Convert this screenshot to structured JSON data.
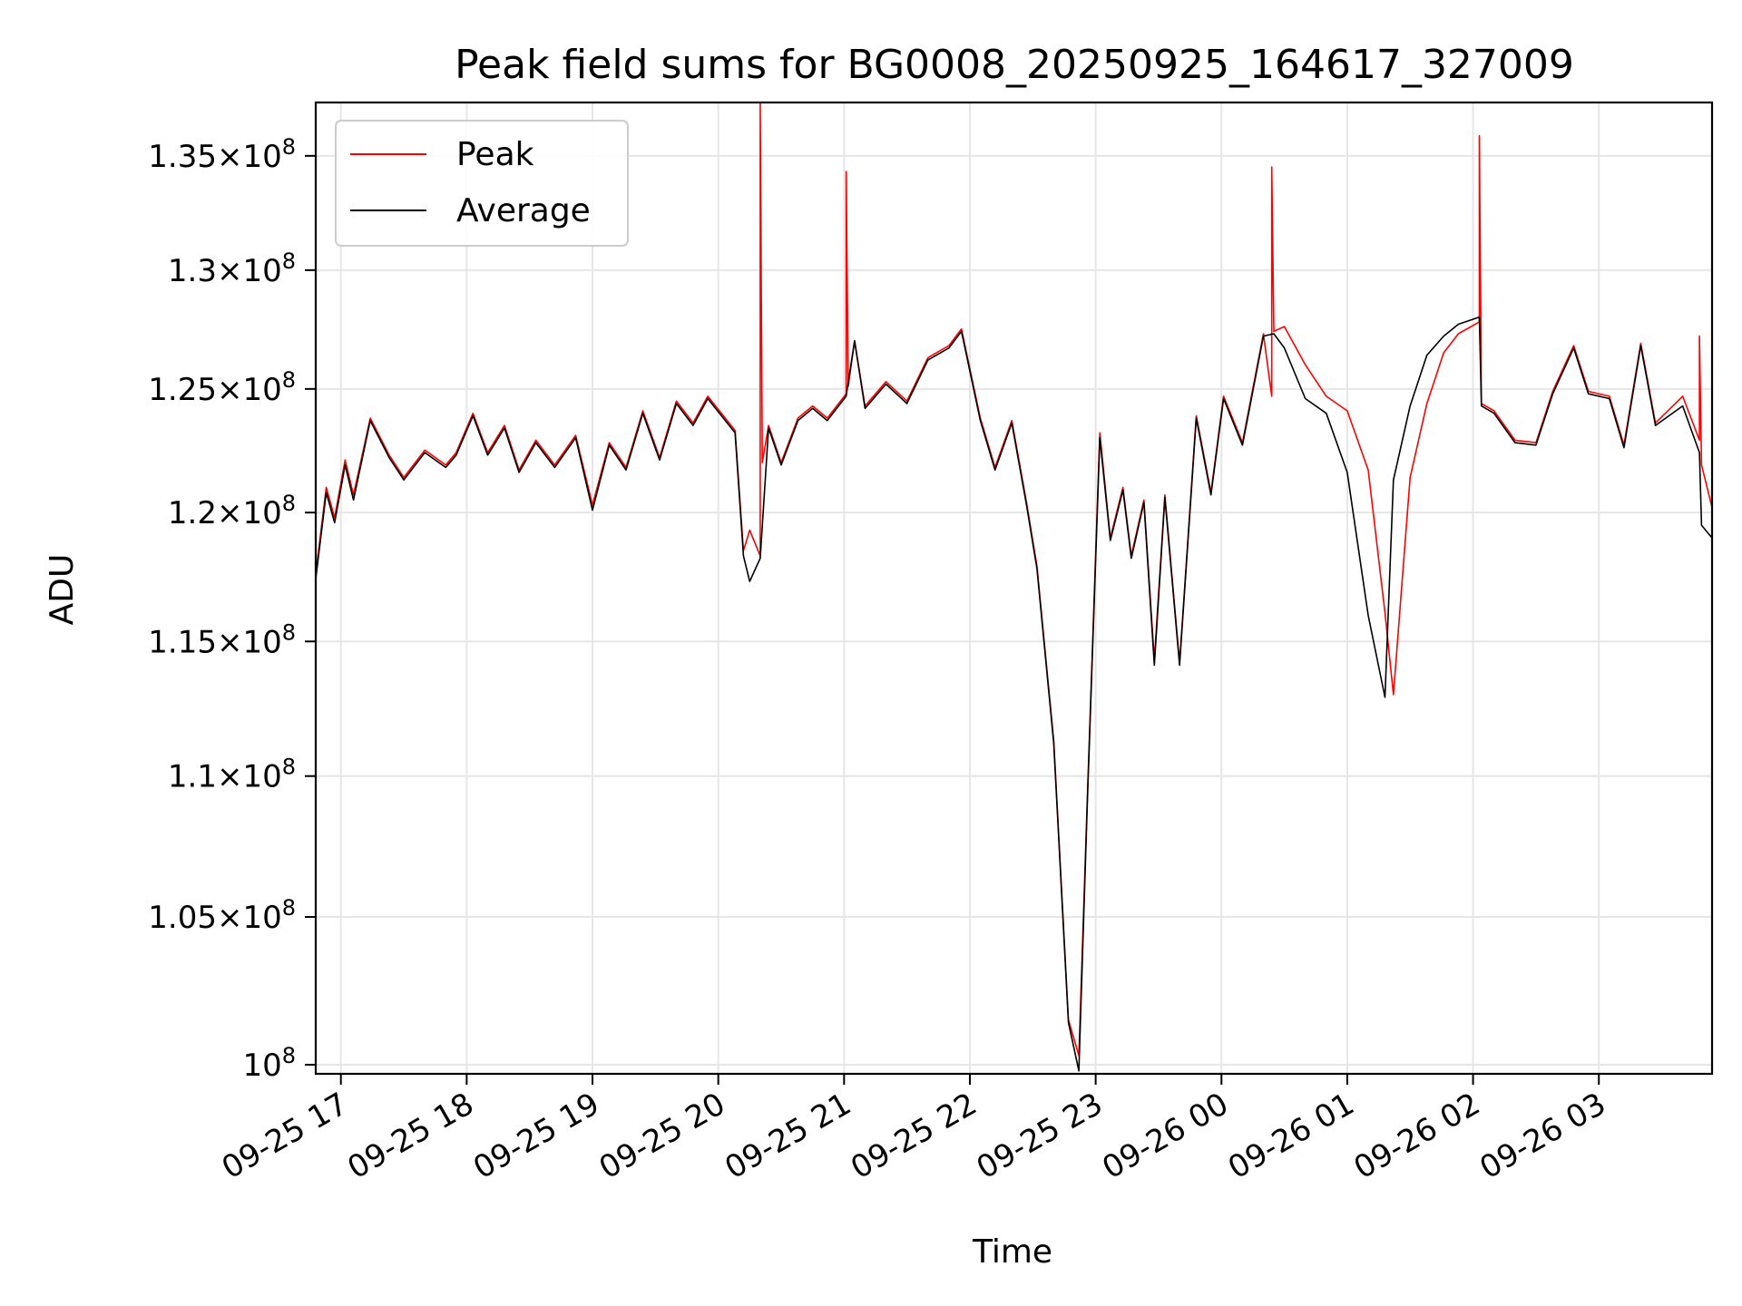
{
  "chart_data": {
    "type": "line",
    "title": "Peak field sums for BG0008_20250925_164617_327009",
    "xlabel": "Time",
    "ylabel": "ADU",
    "y_scale": "log",
    "grid": true,
    "legend_position": "top-left",
    "xlim": [
      "2025-09-25 16:48",
      "2025-09-26 03:54"
    ],
    "ylim": [
      99700000,
      137400000
    ],
    "x_ticks": [
      {
        "t": "2025-09-25 17:00",
        "label": "09-25 17"
      },
      {
        "t": "2025-09-25 18:00",
        "label": "09-25 18"
      },
      {
        "t": "2025-09-25 19:00",
        "label": "09-25 19"
      },
      {
        "t": "2025-09-25 20:00",
        "label": "09-25 20"
      },
      {
        "t": "2025-09-25 21:00",
        "label": "09-25 21"
      },
      {
        "t": "2025-09-25 22:00",
        "label": "09-25 22"
      },
      {
        "t": "2025-09-25 23:00",
        "label": "09-25 23"
      },
      {
        "t": "2025-09-26 00:00",
        "label": "09-26 00"
      },
      {
        "t": "2025-09-26 01:00",
        "label": "09-26 01"
      },
      {
        "t": "2025-09-26 02:00",
        "label": "09-26 02"
      },
      {
        "t": "2025-09-26 03:00",
        "label": "09-26 03"
      }
    ],
    "y_ticks": [
      {
        "v": 100000000,
        "mant": "",
        "exp": "8"
      },
      {
        "v": 105000000,
        "mant": "1.05",
        "exp": "8"
      },
      {
        "v": 110000000,
        "mant": "1.1",
        "exp": "8"
      },
      {
        "v": 115000000,
        "mant": "1.15",
        "exp": "8"
      },
      {
        "v": 120000000,
        "mant": "1.2",
        "exp": "8"
      },
      {
        "v": 125000000,
        "mant": "1.25",
        "exp": "8"
      },
      {
        "v": 130000000,
        "mant": "1.3",
        "exp": "8"
      },
      {
        "v": 135000000,
        "mant": "1.35",
        "exp": "8"
      }
    ],
    "series": [
      {
        "name": "Peak",
        "color": "#ff0000",
        "x": [
          "2025-09-25 16:48",
          "2025-09-25 16:53",
          "2025-09-25 16:57",
          "2025-09-25 17:02",
          "2025-09-25 17:06",
          "2025-09-25 17:14",
          "2025-09-25 17:23",
          "2025-09-25 17:30",
          "2025-09-25 17:40",
          "2025-09-25 17:50",
          "2025-09-25 17:55",
          "2025-09-25 18:03",
          "2025-09-25 18:10",
          "2025-09-25 18:18",
          "2025-09-25 18:25",
          "2025-09-25 18:33",
          "2025-09-25 18:42",
          "2025-09-25 18:52",
          "2025-09-25 19:00",
          "2025-09-25 19:08",
          "2025-09-25 19:16",
          "2025-09-25 19:24",
          "2025-09-25 19:32",
          "2025-09-25 19:40",
          "2025-09-25 19:48",
          "2025-09-25 19:55",
          "2025-09-25 20:08",
          "2025-09-25 20:12",
          "2025-09-25 20:15",
          "2025-09-25 20:20",
          "2025-09-25 20:20",
          "2025-09-25 20:21",
          "2025-09-25 20:24",
          "2025-09-25 20:30",
          "2025-09-25 20:38",
          "2025-09-25 20:45",
          "2025-09-25 20:52",
          "2025-09-25 21:01",
          "2025-09-25 21:01",
          "2025-09-25 21:02",
          "2025-09-25 21:05",
          "2025-09-25 21:10",
          "2025-09-25 21:20",
          "2025-09-25 21:30",
          "2025-09-25 21:40",
          "2025-09-25 21:50",
          "2025-09-25 21:56",
          "2025-09-25 22:05",
          "2025-09-25 22:12",
          "2025-09-25 22:20",
          "2025-09-25 22:27",
          "2025-09-25 22:32",
          "2025-09-25 22:40",
          "2025-09-25 22:47",
          "2025-09-25 22:52",
          "2025-09-25 22:56",
          "2025-09-25 23:02",
          "2025-09-25 23:07",
          "2025-09-25 23:13",
          "2025-09-25 23:17",
          "2025-09-25 23:23",
          "2025-09-25 23:28",
          "2025-09-25 23:33",
          "2025-09-25 23:40",
          "2025-09-25 23:48",
          "2025-09-25 23:55",
          "2025-09-26 00:01",
          "2025-09-26 00:10",
          "2025-09-26 00:20",
          "2025-09-26 00:24",
          "2025-09-26 00:24",
          "2025-09-26 00:25",
          "2025-09-26 00:30",
          "2025-09-26 00:40",
          "2025-09-26 00:50",
          "2025-09-26 01:00",
          "2025-09-26 01:10",
          "2025-09-26 01:18",
          "2025-09-26 01:22",
          "2025-09-26 01:30",
          "2025-09-26 01:38",
          "2025-09-26 01:46",
          "2025-09-26 01:53",
          "2025-09-26 02:03",
          "2025-09-26 02:03",
          "2025-09-26 02:04",
          "2025-09-26 02:10",
          "2025-09-26 02:20",
          "2025-09-26 02:30",
          "2025-09-26 02:38",
          "2025-09-26 02:48",
          "2025-09-26 02:55",
          "2025-09-26 03:05",
          "2025-09-26 03:12",
          "2025-09-26 03:20",
          "2025-09-26 03:27",
          "2025-09-26 03:40",
          "2025-09-26 03:48",
          "2025-09-26 03:48",
          "2025-09-26 03:49",
          "2025-09-26 03:54"
        ],
        "values": [
          117600000,
          121000000,
          119800000,
          122100000,
          120700000,
          123800000,
          122300000,
          121400000,
          122500000,
          121900000,
          122400000,
          124000000,
          122400000,
          123500000,
          121700000,
          122900000,
          121900000,
          123100000,
          120300000,
          122800000,
          121800000,
          124100000,
          122200000,
          124500000,
          123600000,
          124700000,
          123300000,
          118500000,
          119300000,
          118300000,
          137400000,
          122000000,
          123500000,
          122000000,
          123800000,
          124300000,
          123800000,
          124800000,
          134300000,
          125100000,
          127000000,
          124300000,
          125300000,
          124500000,
          126300000,
          126800000,
          127500000,
          123800000,
          121800000,
          123700000,
          120400000,
          117900000,
          111300000,
          101500000,
          100300000,
          109200000,
          123200000,
          119000000,
          121000000,
          118300000,
          120500000,
          114300000,
          120700000,
          114200000,
          123900000,
          120800000,
          124700000,
          122800000,
          127300000,
          124700000,
          134500000,
          127400000,
          127600000,
          126000000,
          124700000,
          124100000,
          121700000,
          116100000,
          113000000,
          121400000,
          124400000,
          126500000,
          127300000,
          127800000,
          135900000,
          124400000,
          124100000,
          122900000,
          122800000,
          124900000,
          126800000,
          124900000,
          124700000,
          122700000,
          126900000,
          123600000,
          124700000,
          122900000,
          127200000,
          121900000,
          120200000
        ]
      },
      {
        "name": "Average",
        "color": "#000000",
        "x": [
          "2025-09-25 16:48",
          "2025-09-25 16:53",
          "2025-09-25 16:57",
          "2025-09-25 17:02",
          "2025-09-25 17:06",
          "2025-09-25 17:14",
          "2025-09-25 17:23",
          "2025-09-25 17:30",
          "2025-09-25 17:40",
          "2025-09-25 17:50",
          "2025-09-25 17:55",
          "2025-09-25 18:03",
          "2025-09-25 18:10",
          "2025-09-25 18:18",
          "2025-09-25 18:25",
          "2025-09-25 18:33",
          "2025-09-25 18:42",
          "2025-09-25 18:52",
          "2025-09-25 19:00",
          "2025-09-25 19:08",
          "2025-09-25 19:16",
          "2025-09-25 19:24",
          "2025-09-25 19:32",
          "2025-09-25 19:40",
          "2025-09-25 19:48",
          "2025-09-25 19:55",
          "2025-09-25 20:08",
          "2025-09-25 20:12",
          "2025-09-25 20:15",
          "2025-09-25 20:20",
          "2025-09-25 20:24",
          "2025-09-25 20:30",
          "2025-09-25 20:38",
          "2025-09-25 20:45",
          "2025-09-25 20:52",
          "2025-09-25 21:01",
          "2025-09-25 21:05",
          "2025-09-25 21:10",
          "2025-09-25 21:20",
          "2025-09-25 21:30",
          "2025-09-25 21:40",
          "2025-09-25 21:50",
          "2025-09-25 21:56",
          "2025-09-25 22:05",
          "2025-09-25 22:12",
          "2025-09-25 22:20",
          "2025-09-25 22:27",
          "2025-09-25 22:32",
          "2025-09-25 22:40",
          "2025-09-25 22:47",
          "2025-09-25 22:52",
          "2025-09-25 22:56",
          "2025-09-25 23:02",
          "2025-09-25 23:07",
          "2025-09-25 23:13",
          "2025-09-25 23:17",
          "2025-09-25 23:23",
          "2025-09-25 23:28",
          "2025-09-25 23:33",
          "2025-09-25 23:40",
          "2025-09-25 23:48",
          "2025-09-25 23:55",
          "2025-09-26 00:01",
          "2025-09-26 00:10",
          "2025-09-26 00:20",
          "2025-09-26 00:25",
          "2025-09-26 00:30",
          "2025-09-26 00:40",
          "2025-09-26 00:50",
          "2025-09-26 01:00",
          "2025-09-26 01:10",
          "2025-09-26 01:18",
          "2025-09-26 01:22",
          "2025-09-26 01:30",
          "2025-09-26 01:38",
          "2025-09-26 01:46",
          "2025-09-26 01:53",
          "2025-09-26 02:03",
          "2025-09-26 02:04",
          "2025-09-26 02:10",
          "2025-09-26 02:20",
          "2025-09-26 02:30",
          "2025-09-26 02:38",
          "2025-09-26 02:48",
          "2025-09-26 02:55",
          "2025-09-26 03:05",
          "2025-09-26 03:12",
          "2025-09-26 03:20",
          "2025-09-26 03:27",
          "2025-09-26 03:40",
          "2025-09-26 03:48",
          "2025-09-26 03:49",
          "2025-09-26 03:54"
        ],
        "values": [
          117400000,
          120800000,
          119600000,
          121900000,
          120500000,
          123700000,
          122200000,
          121300000,
          122400000,
          121800000,
          122300000,
          123900000,
          122300000,
          123400000,
          121600000,
          122800000,
          121800000,
          123000000,
          120100000,
          122700000,
          121700000,
          124000000,
          122100000,
          124400000,
          123500000,
          124600000,
          123200000,
          118300000,
          117300000,
          118200000,
          123400000,
          121900000,
          123700000,
          124200000,
          123700000,
          124700000,
          127000000,
          124200000,
          125200000,
          124400000,
          126200000,
          126700000,
          127400000,
          123700000,
          121700000,
          123600000,
          120300000,
          117800000,
          111200000,
          101400000,
          99800000,
          109000000,
          123000000,
          118900000,
          120900000,
          118200000,
          120400000,
          114100000,
          120600000,
          114100000,
          123800000,
          120700000,
          124600000,
          122700000,
          127200000,
          127300000,
          126700000,
          124600000,
          124000000,
          121600000,
          116000000,
          112900000,
          121300000,
          124300000,
          126400000,
          127200000,
          127700000,
          128000000,
          124300000,
          124000000,
          122800000,
          122700000,
          124800000,
          126700000,
          124800000,
          124600000,
          122600000,
          126800000,
          123500000,
          124300000,
          122400000,
          119500000,
          119000000
        ]
      }
    ]
  }
}
